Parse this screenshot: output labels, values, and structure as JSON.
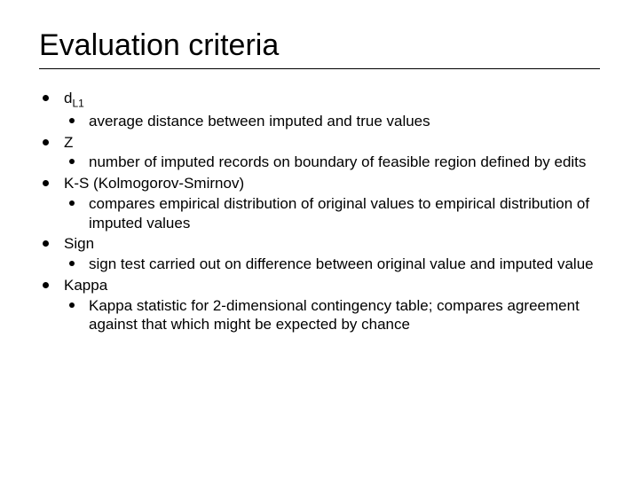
{
  "title": "Evaluation criteria",
  "title_fontsize": 34,
  "body_fontsize": 17,
  "background_color": "#ffffff",
  "text_color": "#000000",
  "rule_color": "#000000",
  "bullet_color": "#000000",
  "items": [
    {
      "label_html": "d<span class=\"sub\">L1</span>",
      "sub": "average distance between imputed and true values"
    },
    {
      "label": "Z",
      "sub": "number of imputed records on boundary of feasible region defined by edits"
    },
    {
      "label": "K-S (Kolmogorov-Smirnov)",
      "sub": "compares empirical distribution of original values to empirical distribution of imputed values"
    },
    {
      "label": "Sign",
      "sub": "sign test carried out on difference between original value and imputed value"
    },
    {
      "label": "Kappa",
      "sub": "Kappa statistic for 2-dimensional contingency table; compares agreement against that which might be expected by chance"
    }
  ]
}
